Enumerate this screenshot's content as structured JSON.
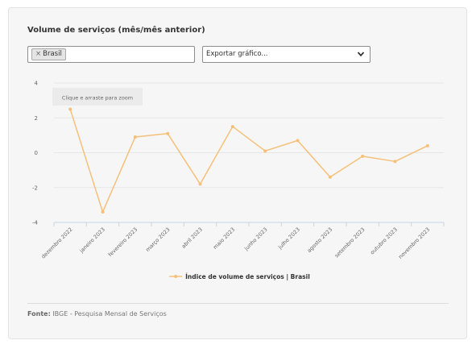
{
  "panel": {
    "title": "Volume de serviços (mês/mês anterior)"
  },
  "filter": {
    "chip_remove": "×",
    "chip_label": "Brasil"
  },
  "export": {
    "label": "Exportar gráfico..."
  },
  "zoom_hint": "Clique e arraste para zoom",
  "source": {
    "label": "Fonte:",
    "text": " IBGE - Pesquisa Mensal de Serviços"
  },
  "colors": {
    "series": "#f5c07a",
    "grid": "#e6e6e6",
    "axis": "#c8d4e6"
  },
  "chart_data": {
    "type": "line",
    "title": "Volume de serviços (mês/mês anterior)",
    "categories": [
      "dezembro 2022",
      "janeiro 2023",
      "fevereiro 2023",
      "março 2023",
      "abril 2023",
      "maio 2023",
      "junho 2023",
      "julho 2023",
      "agosto 2023",
      "setembro 2023",
      "outubro 2023",
      "novembro 2023"
    ],
    "series": [
      {
        "name": "Índice de volume de serviços | Brasil",
        "values": [
          2.5,
          -3.4,
          0.9,
          1.1,
          -1.8,
          1.5,
          0.1,
          0.7,
          -1.4,
          -0.2,
          -0.5,
          0.4
        ]
      }
    ],
    "ylim": [
      -4,
      4
    ],
    "yticks": [
      -4,
      -2,
      0,
      2,
      4
    ],
    "grid": true,
    "legend": "bottom-center"
  }
}
